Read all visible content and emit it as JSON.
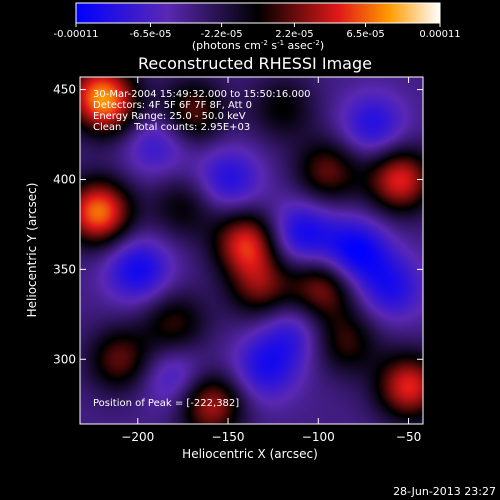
{
  "chart_data": {
    "type": "heatmap",
    "title": "Reconstructed RHESSI Image",
    "xlabel": "Heliocentric X (arcsec)",
    "ylabel": "Heliocentric Y (arcsec)",
    "xlim": [
      -232,
      -42
    ],
    "ylim": [
      264,
      457
    ],
    "x_ticks": [
      -200,
      -150,
      -100,
      -50
    ],
    "y_ticks": [
      300,
      350,
      400,
      450
    ],
    "colorbar": {
      "min": -0.00011,
      "max": 0.00011,
      "tick_values": [
        -0.00011,
        -6.5e-05,
        -2.2e-05,
        2.2e-05,
        6.5e-05,
        0.00011
      ],
      "tick_labels": [
        "-0.00011",
        "-6.5e-05",
        "-2.2e-05",
        "2.2e-05",
        "6.5e-05",
        "0.00011"
      ],
      "units_main": "(photons cm",
      "units_exp1": "-2",
      "units_mid": " s",
      "units_exp2": "-1",
      "units_end": " asec",
      "units_exp3": "-2",
      "units_close": ")"
    },
    "annotations": {
      "time_range": "30-Mar-2004 15:49:32.000 to 15:50:16.000",
      "detectors": "Detectors: 4F 5F 6F 7F 8F, Att 0",
      "energy_range": "Energy Range: 25.0 - 50.0 keV",
      "method": "Clean    Total counts: 2.95E+03",
      "peak": "Position of Peak = [-222,382]"
    },
    "peak_position": [
      -222,
      382
    ],
    "sources": [
      {
        "x": -222,
        "y": 382,
        "v": 0.00011
      },
      {
        "x": -222,
        "y": 448,
        "v": 8e-05
      },
      {
        "x": -170,
        "y": 438,
        "v": 6e-05
      },
      {
        "x": -140,
        "y": 365,
        "v": 9e-05
      },
      {
        "x": -132,
        "y": 340,
        "v": 6e-05
      },
      {
        "x": -180,
        "y": 320,
        "v": 5e-05
      },
      {
        "x": -210,
        "y": 300,
        "v": 6e-05
      },
      {
        "x": -160,
        "y": 275,
        "v": 8e-05
      },
      {
        "x": -98,
        "y": 340,
        "v": 7e-05
      },
      {
        "x": -95,
        "y": 405,
        "v": 6e-05
      },
      {
        "x": -55,
        "y": 400,
        "v": 9e-05
      },
      {
        "x": -50,
        "y": 285,
        "v": 9e-05
      },
      {
        "x": -85,
        "y": 310,
        "v": 5e-05
      },
      {
        "x": -215,
        "y": 440,
        "v": 5e-05
      },
      {
        "x": -175,
        "y": 385,
        "v": 4e-05
      },
      {
        "x": -120,
        "y": 440,
        "v": 4e-05
      },
      {
        "x": -200,
        "y": 350,
        "v": -6e-05
      },
      {
        "x": -150,
        "y": 400,
        "v": -5e-05
      },
      {
        "x": -110,
        "y": 370,
        "v": -6e-05
      },
      {
        "x": -80,
        "y": 360,
        "v": -7e-05
      },
      {
        "x": -60,
        "y": 340,
        "v": -5e-05
      },
      {
        "x": -180,
        "y": 290,
        "v": -4e-05
      },
      {
        "x": -130,
        "y": 295,
        "v": -5e-05
      },
      {
        "x": -70,
        "y": 430,
        "v": -5e-05
      },
      {
        "x": -190,
        "y": 420,
        "v": -4e-05
      },
      {
        "x": -115,
        "y": 315,
        "v": -4e-05
      }
    ]
  },
  "footer": {
    "timestamp": "28-Jun-2013 23:27"
  }
}
